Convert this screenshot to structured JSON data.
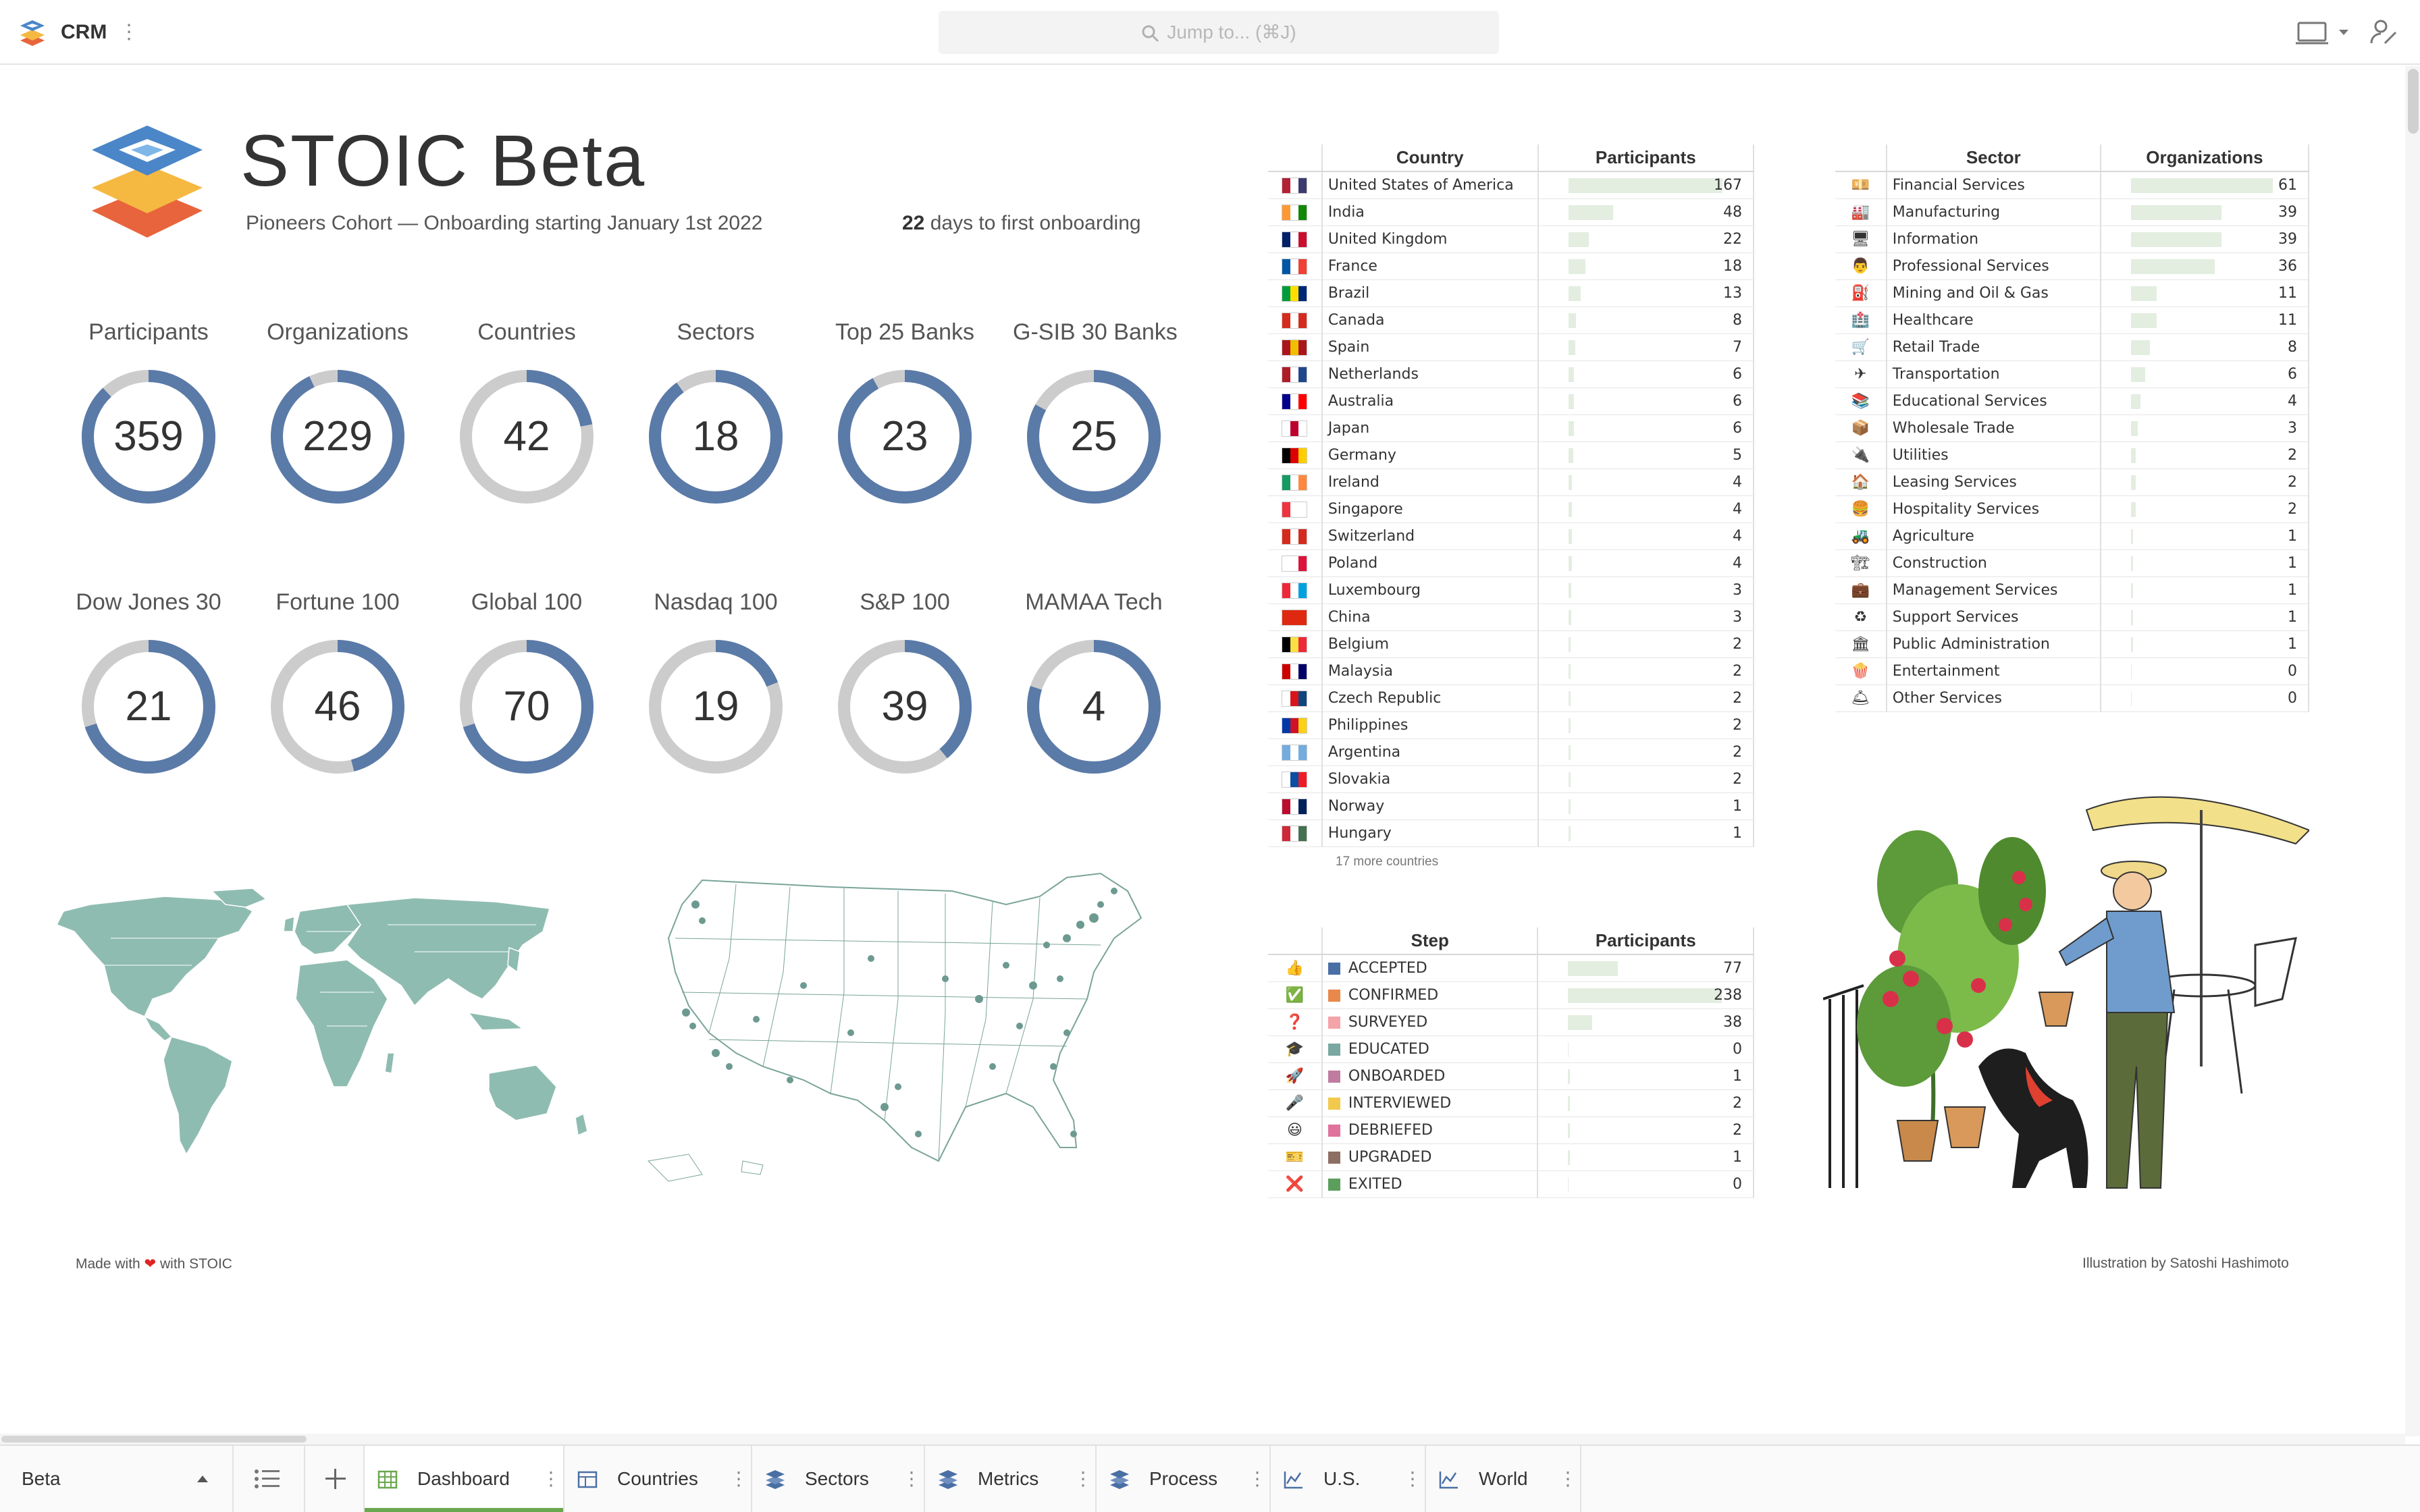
{
  "topbar": {
    "app_name": "CRM",
    "menu_icon": "vertical-dots-icon",
    "search_placeholder": "Jump to... (⌘J)"
  },
  "header": {
    "title": "STOIC Beta",
    "cohort": "Pioneers Cohort — Onboarding starting January 1st 2022",
    "days_number": "22",
    "days_text": " days to first onboarding"
  },
  "colors": {
    "accent": "#5a7aa8",
    "track": "#cccccc",
    "bar": "#e3eee1",
    "map_fill": "#8fbcb0",
    "tab_active": "#6aa84f"
  },
  "metrics": [
    {
      "label": "Participants",
      "value": "359",
      "fraction": 0.88
    },
    {
      "label": "Organizations",
      "value": "229",
      "fraction": 0.93
    },
    {
      "label": "Countries",
      "value": "42",
      "fraction": 0.22
    },
    {
      "label": "Sectors",
      "value": "18",
      "fraction": 0.9
    },
    {
      "label": "Top 25 Banks",
      "value": "23",
      "fraction": 0.92
    },
    {
      "label": "G-SIB 30 Banks",
      "value": "25",
      "fraction": 0.83
    },
    {
      "label": "Dow Jones 30",
      "value": "21",
      "fraction": 0.7
    },
    {
      "label": "Fortune 100",
      "value": "46",
      "fraction": 0.46
    },
    {
      "label": "Global 100",
      "value": "70",
      "fraction": 0.7
    },
    {
      "label": "Nasdaq 100",
      "value": "19",
      "fraction": 0.19
    },
    {
      "label": "S&P 100",
      "value": "39",
      "fraction": 0.39
    },
    {
      "label": "MAMAA Tech",
      "value": "4",
      "fraction": 0.8
    }
  ],
  "countries_table": {
    "col_country": "Country",
    "col_participants": "Participants",
    "max": 167,
    "rows": [
      {
        "name": "United States of America",
        "value": 167,
        "flag": [
          "#b22234",
          "#ffffff",
          "#3c3b6e"
        ]
      },
      {
        "name": "India",
        "value": 48,
        "flag": [
          "#ff9933",
          "#ffffff",
          "#138808"
        ]
      },
      {
        "name": "United Kingdom",
        "value": 22,
        "flag": [
          "#012169",
          "#ffffff",
          "#c8102e"
        ]
      },
      {
        "name": "France",
        "value": 18,
        "flag": [
          "#0055a4",
          "#ffffff",
          "#ef4135"
        ]
      },
      {
        "name": "Brazil",
        "value": 13,
        "flag": [
          "#009c3b",
          "#ffdf00",
          "#002776"
        ]
      },
      {
        "name": "Canada",
        "value": 8,
        "flag": [
          "#d52b1e",
          "#ffffff",
          "#d52b1e"
        ]
      },
      {
        "name": "Spain",
        "value": 7,
        "flag": [
          "#aa151b",
          "#f1bf00",
          "#aa151b"
        ]
      },
      {
        "name": "Netherlands",
        "value": 6,
        "flag": [
          "#ae1c28",
          "#ffffff",
          "#21468b"
        ]
      },
      {
        "name": "Australia",
        "value": 6,
        "flag": [
          "#00008b",
          "#ffffff",
          "#ff0000"
        ]
      },
      {
        "name": "Japan",
        "value": 6,
        "flag": [
          "#ffffff",
          "#bc002d",
          "#ffffff"
        ]
      },
      {
        "name": "Germany",
        "value": 5,
        "flag": [
          "#000000",
          "#dd0000",
          "#ffce00"
        ]
      },
      {
        "name": "Ireland",
        "value": 4,
        "flag": [
          "#169b62",
          "#ffffff",
          "#ff883e"
        ]
      },
      {
        "name": "Singapore",
        "value": 4,
        "flag": [
          "#ef3340",
          "#ffffff",
          "#ffffff"
        ]
      },
      {
        "name": "Switzerland",
        "value": 4,
        "flag": [
          "#d52b1e",
          "#ffffff",
          "#d52b1e"
        ]
      },
      {
        "name": "Poland",
        "value": 4,
        "flag": [
          "#ffffff",
          "#ffffff",
          "#dc143c"
        ]
      },
      {
        "name": "Luxembourg",
        "value": 3,
        "flag": [
          "#ed2939",
          "#ffffff",
          "#00a1de"
        ]
      },
      {
        "name": "China",
        "value": 3,
        "flag": [
          "#de2910",
          "#de2910",
          "#de2910"
        ]
      },
      {
        "name": "Belgium",
        "value": 2,
        "flag": [
          "#000000",
          "#fae042",
          "#ed2939"
        ]
      },
      {
        "name": "Malaysia",
        "value": 2,
        "flag": [
          "#cc0001",
          "#ffffff",
          "#010066"
        ]
      },
      {
        "name": "Czech Republic",
        "value": 2,
        "flag": [
          "#ffffff",
          "#d7141a",
          "#11457e"
        ]
      },
      {
        "name": "Philippines",
        "value": 2,
        "flag": [
          "#0038a8",
          "#ce1126",
          "#fcd116"
        ]
      },
      {
        "name": "Argentina",
        "value": 2,
        "flag": [
          "#74acdf",
          "#ffffff",
          "#74acdf"
        ]
      },
      {
        "name": "Slovakia",
        "value": 2,
        "flag": [
          "#ffffff",
          "#0b4ea2",
          "#ee1c25"
        ]
      },
      {
        "name": "Norway",
        "value": 1,
        "flag": [
          "#ba0c2f",
          "#ffffff",
          "#00205b"
        ]
      },
      {
        "name": "Hungary",
        "value": 1,
        "flag": [
          "#ce2939",
          "#ffffff",
          "#477050"
        ]
      }
    ],
    "more": "17 more countries"
  },
  "sectors_table": {
    "col_sector": "Sector",
    "col_organizations": "Organizations",
    "max": 61,
    "rows": [
      {
        "name": "Financial Services",
        "value": 61,
        "icon": "money-icon",
        "glyph": "💴"
      },
      {
        "name": "Manufacturing",
        "value": 39,
        "icon": "factory-icon",
        "glyph": "🏭"
      },
      {
        "name": "Information",
        "value": 39,
        "icon": "computer-icon",
        "glyph": "🖥"
      },
      {
        "name": "Professional Services",
        "value": 36,
        "icon": "office-worker-icon",
        "glyph": "👨"
      },
      {
        "name": "Mining and Oil & Gas",
        "value": 11,
        "icon": "fuel-pump-icon",
        "glyph": "⛽"
      },
      {
        "name": "Healthcare",
        "value": 11,
        "icon": "hospital-icon",
        "glyph": "🏥"
      },
      {
        "name": "Retail Trade",
        "value": 8,
        "icon": "shopping-cart-icon",
        "glyph": "🛒"
      },
      {
        "name": "Transportation",
        "value": 6,
        "icon": "airplane-icon",
        "glyph": "✈"
      },
      {
        "name": "Educational Services",
        "value": 4,
        "icon": "books-icon",
        "glyph": "📚"
      },
      {
        "name": "Wholesale Trade",
        "value": 3,
        "icon": "package-icon",
        "glyph": "📦"
      },
      {
        "name": "Utilities",
        "value": 2,
        "icon": "plug-icon",
        "glyph": "🔌"
      },
      {
        "name": "Leasing Services",
        "value": 2,
        "icon": "house-icon",
        "glyph": "🏠"
      },
      {
        "name": "Hospitality Services",
        "value": 2,
        "icon": "burger-icon",
        "glyph": "🍔"
      },
      {
        "name": "Agriculture",
        "value": 1,
        "icon": "tractor-icon",
        "glyph": "🚜"
      },
      {
        "name": "Construction",
        "value": 1,
        "icon": "crane-icon",
        "glyph": "🏗"
      },
      {
        "name": "Management Services",
        "value": 1,
        "icon": "briefcase-icon",
        "glyph": "💼"
      },
      {
        "name": "Support Services",
        "value": 1,
        "icon": "recycle-icon",
        "glyph": "♻"
      },
      {
        "name": "Public Administration",
        "value": 1,
        "icon": "government-icon",
        "glyph": "🏛"
      },
      {
        "name": "Entertainment",
        "value": 0,
        "icon": "popcorn-icon",
        "glyph": "🍿"
      },
      {
        "name": "Other Services",
        "value": 0,
        "icon": "bell-icon",
        "glyph": "🛎"
      }
    ]
  },
  "process_table": {
    "col_step": "Step",
    "col_participants": "Participants",
    "max": 238,
    "rows": [
      {
        "name": "ACCEPTED",
        "value": 77,
        "color": "#4a6fa5",
        "icon": "thumbs-up-icon",
        "glyph": "👍"
      },
      {
        "name": "CONFIRMED",
        "value": 238,
        "color": "#e8884a",
        "icon": "check-box-icon",
        "glyph": "✅"
      },
      {
        "name": "SURVEYED",
        "value": 38,
        "color": "#f4a3a8",
        "icon": "question-icon",
        "glyph": "❓"
      },
      {
        "name": "EDUCATED",
        "value": 0,
        "color": "#7aa7a1",
        "icon": "graduation-cap-icon",
        "glyph": "🎓"
      },
      {
        "name": "ONBOARDED",
        "value": 1,
        "color": "#c07ba0",
        "icon": "rocket-icon",
        "glyph": "🚀"
      },
      {
        "name": "INTERVIEWED",
        "value": 2,
        "color": "#f2c94c",
        "icon": "microphone-icon",
        "glyph": "🎤"
      },
      {
        "name": "DEBRIEFED",
        "value": 2,
        "color": "#e0739b",
        "icon": "smiley-icon",
        "glyph": "😃"
      },
      {
        "name": "UPGRADED",
        "value": 1,
        "color": "#8d6e63",
        "icon": "ticket-icon",
        "glyph": "🎫"
      },
      {
        "name": "EXITED",
        "value": 0,
        "color": "#5c9e5c",
        "icon": "cross-icon",
        "glyph": "❌"
      }
    ]
  },
  "footer": {
    "made_with_prefix": "Made with ",
    "made_with_suffix": " with STOIC",
    "credit": "Illustration by Satoshi Hashimoto"
  },
  "tabs": {
    "workspace": "Beta",
    "items": [
      {
        "label": "Dashboard",
        "icon": "table-grid-icon",
        "active": true
      },
      {
        "label": "Countries",
        "icon": "table-icon"
      },
      {
        "label": "Sectors",
        "icon": "layers-icon"
      },
      {
        "label": "Metrics",
        "icon": "layers-icon"
      },
      {
        "label": "Process",
        "icon": "layers-icon"
      },
      {
        "label": "U.S.",
        "icon": "line-chart-icon"
      },
      {
        "label": "World",
        "icon": "line-chart-icon"
      }
    ]
  }
}
